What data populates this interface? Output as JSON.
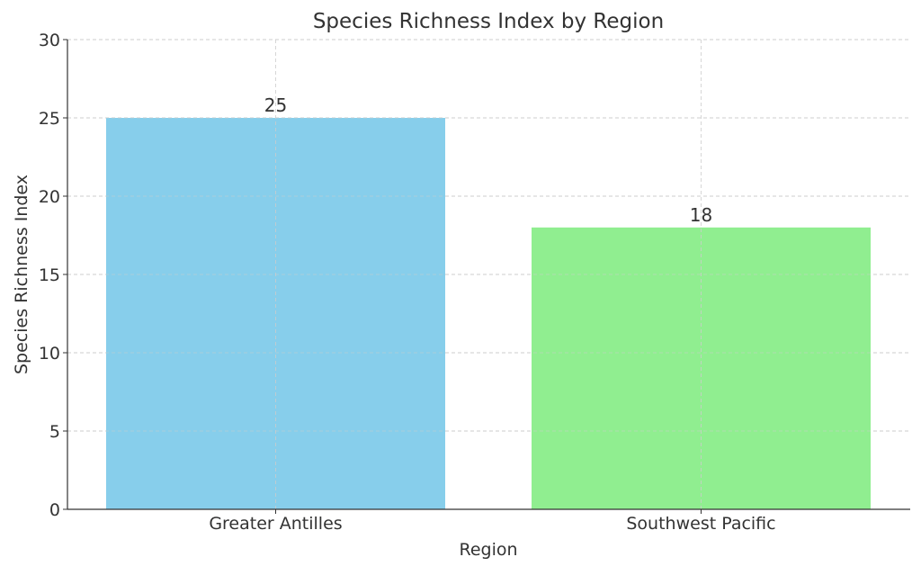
{
  "chart_data": {
    "type": "bar",
    "title": "Species Richness Index by Region",
    "xlabel": "Region",
    "ylabel": "Species Richness Index",
    "categories": [
      "Greater Antilles",
      "Southwest Pacific"
    ],
    "values": [
      25,
      18
    ],
    "data_labels": [
      "25",
      "18"
    ],
    "colors": [
      "#87ceeb",
      "#90ee90"
    ],
    "ylim": [
      0,
      30
    ],
    "yticks": [
      0,
      5,
      10,
      15,
      20,
      25,
      30
    ],
    "ytick_labels": [
      "0",
      "5",
      "10",
      "15",
      "20",
      "25",
      "30"
    ],
    "grid": true,
    "legend": "none"
  }
}
